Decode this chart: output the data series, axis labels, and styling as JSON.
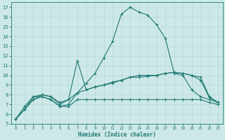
{
  "xlabel": "Humidex (Indice chaleur)",
  "xlim": [
    -0.5,
    23.5
  ],
  "ylim": [
    5,
    17.5
  ],
  "xticks": [
    0,
    1,
    2,
    3,
    4,
    5,
    6,
    7,
    8,
    9,
    10,
    11,
    12,
    13,
    14,
    15,
    16,
    17,
    18,
    19,
    20,
    21,
    22,
    23
  ],
  "yticks": [
    5,
    6,
    7,
    8,
    9,
    10,
    11,
    12,
    13,
    14,
    15,
    16,
    17
  ],
  "line_color": "#1e7a72",
  "bg_color": "#cde8e8",
  "grid_color": "#b8d8d8",
  "lines": [
    {
      "x": [
        0,
        1,
        2,
        3,
        4,
        5,
        6,
        7,
        8,
        9,
        10,
        11,
        12,
        13,
        14,
        15,
        16,
        17,
        18,
        19,
        20,
        21,
        22,
        23
      ],
      "y": [
        5.5,
        6.8,
        7.8,
        7.8,
        7.5,
        6.8,
        7.0,
        8.2,
        9.2,
        10.2,
        11.8,
        13.5,
        16.3,
        17.0,
        16.5,
        16.2,
        15.2,
        13.8,
        10.2,
        10.0,
        8.5,
        7.8,
        7.5,
        7.2
      ]
    },
    {
      "x": [
        0,
        1,
        2,
        3,
        4,
        5,
        6,
        7,
        8,
        9,
        10,
        11,
        12,
        13,
        14,
        15,
        16,
        17,
        18,
        19,
        20,
        21,
        22,
        23
      ],
      "y": [
        5.5,
        6.5,
        7.8,
        8.0,
        7.8,
        7.2,
        7.5,
        11.5,
        8.5,
        8.8,
        9.0,
        9.3,
        9.5,
        9.8,
        10.0,
        10.0,
        10.0,
        10.2,
        10.3,
        10.2,
        10.0,
        9.8,
        7.8,
        7.2
      ]
    },
    {
      "x": [
        0,
        1,
        2,
        3,
        4,
        5,
        6,
        7,
        8,
        9,
        10,
        11,
        12,
        13,
        14,
        15,
        16,
        17,
        18,
        19,
        20,
        21,
        22,
        23
      ],
      "y": [
        5.5,
        6.5,
        7.5,
        8.0,
        7.8,
        7.0,
        7.5,
        8.2,
        8.5,
        8.8,
        9.0,
        9.2,
        9.5,
        9.8,
        9.8,
        9.9,
        10.0,
        10.2,
        10.3,
        10.2,
        10.0,
        9.5,
        7.7,
        7.2
      ]
    },
    {
      "x": [
        0,
        1,
        2,
        3,
        4,
        5,
        6,
        7,
        8,
        9,
        10,
        11,
        12,
        13,
        14,
        15,
        16,
        17,
        18,
        19,
        20,
        21,
        22,
        23
      ],
      "y": [
        5.5,
        6.5,
        7.5,
        7.8,
        7.5,
        6.8,
        6.8,
        7.5,
        7.5,
        7.5,
        7.5,
        7.5,
        7.5,
        7.5,
        7.5,
        7.5,
        7.5,
        7.5,
        7.5,
        7.5,
        7.5,
        7.5,
        7.2,
        7.0
      ]
    }
  ]
}
